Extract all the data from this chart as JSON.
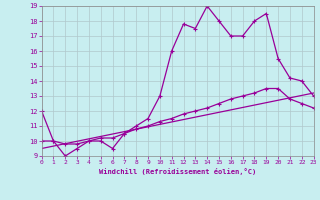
{
  "xlabel": "Windchill (Refroidissement éolien,°C)",
  "background_color": "#c8eef0",
  "grid_color": "#b0c8cc",
  "line_color": "#990099",
  "xlim": [
    0,
    23
  ],
  "ylim": [
    9,
    19
  ],
  "xticks": [
    0,
    1,
    2,
    3,
    4,
    5,
    6,
    7,
    8,
    9,
    10,
    11,
    12,
    13,
    14,
    15,
    16,
    17,
    18,
    19,
    20,
    21,
    22,
    23
  ],
  "yticks": [
    9,
    10,
    11,
    12,
    13,
    14,
    15,
    16,
    17,
    18,
    19
  ],
  "line1_x": [
    0,
    1,
    2,
    3,
    4,
    5,
    6,
    7,
    8,
    9,
    10,
    11,
    12,
    13,
    14,
    15,
    16,
    17,
    18,
    19,
    20,
    21,
    22,
    23
  ],
  "line1_y": [
    12,
    10,
    9,
    9.5,
    10,
    10,
    9.5,
    10.5,
    11,
    11.5,
    13,
    16,
    17.8,
    17.5,
    19,
    18,
    17,
    17,
    18,
    18.5,
    15.5,
    14.2,
    14,
    13
  ],
  "line2_x": [
    0,
    1,
    2,
    3,
    4,
    5,
    6,
    7,
    8,
    9,
    10,
    11,
    12,
    13,
    14,
    15,
    16,
    17,
    18,
    19,
    20,
    21,
    22,
    23
  ],
  "line2_y": [
    10,
    10,
    9.8,
    9.8,
    10,
    10.2,
    10.2,
    10.5,
    10.8,
    11.0,
    11.3,
    11.5,
    11.8,
    12.0,
    12.2,
    12.5,
    12.8,
    13.0,
    13.2,
    13.5,
    13.5,
    12.8,
    12.5,
    12.2
  ],
  "line3_x": [
    0,
    23
  ],
  "line3_y": [
    9.5,
    13.2
  ]
}
